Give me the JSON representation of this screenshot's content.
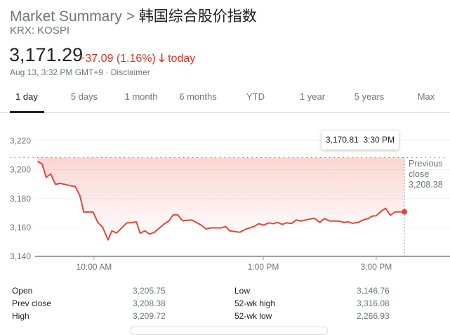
{
  "header": {
    "breadcrumb": "Market Summary",
    "separator": ">",
    "index_name": "韩国综合股价指数",
    "ticker": "KRX: KOSPI"
  },
  "quote": {
    "price": "3,171.29",
    "change": "−37.09 (1.16%)",
    "direction_icon": "arrow-down-icon",
    "period": "today",
    "timestamp": "Aug 13, 3:32 PM GMT+9",
    "separator": "·",
    "disclaimer": "Disclaimer"
  },
  "tabs": [
    {
      "label": "1 day",
      "active": true
    },
    {
      "label": "5 days"
    },
    {
      "label": "1 month"
    },
    {
      "label": "6 months"
    },
    {
      "label": "YTD"
    },
    {
      "label": "1 year"
    },
    {
      "label": "5 years"
    },
    {
      "label": "Max"
    }
  ],
  "tooltip": {
    "value": "3,170.81",
    "time": "3:30 PM"
  },
  "previous_close": {
    "label1": "Previous",
    "label2": "close",
    "value": "3,208.38"
  },
  "colors": {
    "line": "#ea4335",
    "down": "#d93025",
    "muted": "#70757a"
  },
  "chart_data": {
    "type": "line",
    "ylim": [
      3140,
      3220
    ],
    "xlim": [
      "9:00",
      "16:15"
    ],
    "y_ticks": [
      "3,220",
      "3,200",
      "3,180",
      "3,160",
      "3,140"
    ],
    "y_tick_values": [
      3220,
      3200,
      3180,
      3160,
      3140
    ],
    "x_ticks": [
      {
        "label": "10:00 AM",
        "time": "10:00"
      },
      {
        "label": "1:00 PM",
        "time": "13:00"
      },
      {
        "label": "3:00 PM",
        "time": "15:00"
      }
    ],
    "previous_close": 3208.38,
    "grid": true,
    "points": [
      [
        "9:00",
        3205.7
      ],
      [
        "9:05",
        3203.8
      ],
      [
        "9:09",
        3194.7
      ],
      [
        "9:14",
        3197
      ],
      [
        "9:19",
        3189.8
      ],
      [
        "9:24",
        3190.6
      ],
      [
        "9:33",
        3189.2
      ],
      [
        "9:38",
        3188.5
      ],
      [
        "9:40",
        3188.5
      ],
      [
        "9:45",
        3182
      ],
      [
        "9:49",
        3170.7
      ],
      [
        "9:59",
        3170.7
      ],
      [
        "10:04",
        3163.5
      ],
      [
        "10:09",
        3160.3
      ],
      [
        "10:15",
        3151.4
      ],
      [
        "10:19",
        3157.7
      ],
      [
        "10:24",
        3156.2
      ],
      [
        "10:35",
        3163.2
      ],
      [
        "10:39",
        3163.2
      ],
      [
        "10:45",
        3163.9
      ],
      [
        "10:49",
        3156
      ],
      [
        "10:54",
        3157.7
      ],
      [
        "10:59",
        3155.4
      ],
      [
        "11:04",
        3156.6
      ],
      [
        "11:15",
        3162.6
      ],
      [
        "11:20",
        3164.8
      ],
      [
        "11:24",
        3168.7
      ],
      [
        "11:29",
        3168.7
      ],
      [
        "11:34",
        3164.7
      ],
      [
        "11:44",
        3165.2
      ],
      [
        "11:54",
        3161.6
      ],
      [
        "11:59",
        3159
      ],
      [
        "12:04",
        3159.7
      ],
      [
        "12:15",
        3159.7
      ],
      [
        "12:20",
        3160.6
      ],
      [
        "12:24",
        3157.7
      ],
      [
        "12:35",
        3156.7
      ],
      [
        "12:41",
        3158.7
      ],
      [
        "12:50",
        3160.6
      ],
      [
        "12:55",
        3162.6
      ],
      [
        "13:00",
        3161.6
      ],
      [
        "13:06",
        3163.2
      ],
      [
        "13:11",
        3162.6
      ],
      [
        "13:15",
        3163.5
      ],
      [
        "13:20",
        3162.2
      ],
      [
        "13:25",
        3163.2
      ],
      [
        "13:30",
        3162.7
      ],
      [
        "13:35",
        3165.2
      ],
      [
        "13:40",
        3164.5
      ],
      [
        "13:54",
        3166.4
      ],
      [
        "14:00",
        3163.5
      ],
      [
        "14:05",
        3166.1
      ],
      [
        "14:11",
        3164.4
      ],
      [
        "14:20",
        3164.4
      ],
      [
        "14:26",
        3163.5
      ],
      [
        "14:30",
        3163.9
      ],
      [
        "14:35",
        3162.9
      ],
      [
        "14:41",
        3163.5
      ],
      [
        "14:47",
        3165.5
      ],
      [
        "14:51",
        3166
      ],
      [
        "14:56",
        3167.9
      ],
      [
        "15:00",
        3168.1
      ],
      [
        "15:06",
        3171.6
      ],
      [
        "15:10",
        3173.3
      ],
      [
        "15:15",
        3168.4
      ],
      [
        "15:20",
        3170.8
      ],
      [
        "15:30",
        3170.81
      ]
    ]
  },
  "stats": {
    "left": [
      {
        "label": "Open",
        "value": "3,205.75"
      },
      {
        "label": "Prev close",
        "value": "3,208.38"
      },
      {
        "label": "High",
        "value": "3,209.72"
      }
    ],
    "right": [
      {
        "label": "Low",
        "value": "3,146.76"
      },
      {
        "label": "52-wk high",
        "value": "3,316.08"
      },
      {
        "label": "52-wk low",
        "value": "2,266.93"
      }
    ]
  }
}
